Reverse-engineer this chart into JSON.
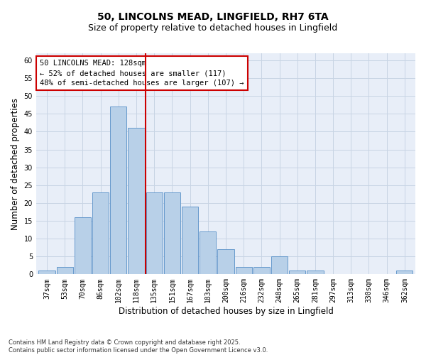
{
  "title_line1": "50, LINCOLNS MEAD, LINGFIELD, RH7 6TA",
  "title_line2": "Size of property relative to detached houses in Lingfield",
  "xlabel": "Distribution of detached houses by size in Lingfield",
  "ylabel": "Number of detached properties",
  "categories": [
    "37sqm",
    "53sqm",
    "70sqm",
    "86sqm",
    "102sqm",
    "118sqm",
    "135sqm",
    "151sqm",
    "167sqm",
    "183sqm",
    "200sqm",
    "216sqm",
    "232sqm",
    "248sqm",
    "265sqm",
    "281sqm",
    "297sqm",
    "313sqm",
    "330sqm",
    "346sqm",
    "362sqm"
  ],
  "values": [
    1,
    2,
    16,
    23,
    47,
    41,
    23,
    23,
    19,
    12,
    7,
    2,
    2,
    5,
    1,
    1,
    0,
    0,
    0,
    0,
    1
  ],
  "bar_color": "#b8d0e8",
  "bar_edge_color": "#6699cc",
  "vline_x_index": 5.5,
  "vline_color": "#cc0000",
  "ylim": [
    0,
    62
  ],
  "yticks": [
    0,
    5,
    10,
    15,
    20,
    25,
    30,
    35,
    40,
    45,
    50,
    55,
    60
  ],
  "grid_color": "#c8d4e4",
  "bg_color": "#e8eef8",
  "annotation_line1": "50 LINCOLNS MEAD: 128sqm",
  "annotation_line2": "← 52% of detached houses are smaller (117)",
  "annotation_line3": "48% of semi-detached houses are larger (107) →",
  "annotation_box_edge": "#cc0000",
  "footnote": "Contains HM Land Registry data © Crown copyright and database right 2025.\nContains public sector information licensed under the Open Government Licence v3.0.",
  "title_fontsize": 10,
  "subtitle_fontsize": 9,
  "axis_label_fontsize": 8.5,
  "tick_fontsize": 7,
  "annotation_fontsize": 7.5,
  "footnote_fontsize": 6
}
